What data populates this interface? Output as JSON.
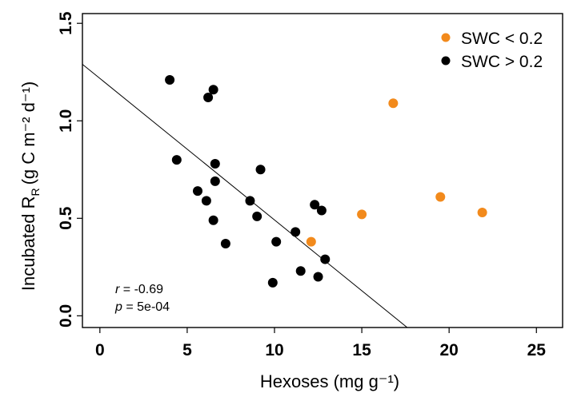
{
  "chart_data": {
    "type": "scatter",
    "xlabel": "Hexoses (mg g⁻¹)",
    "ylabel": "Incubated R",
    "ylabel_sub": "R",
    "ylabel_units": "(g C m⁻² d⁻¹)",
    "xlim": [
      -1,
      26.5
    ],
    "ylim": [
      -0.06,
      1.55
    ],
    "x_ticks": [
      0,
      5,
      10,
      15,
      20,
      25
    ],
    "y_ticks": [
      0.0,
      0.5,
      1.0,
      1.5
    ],
    "x_tick_labels": [
      "0",
      "5",
      "10",
      "15",
      "20",
      "25"
    ],
    "y_tick_labels": [
      "0.0",
      "0.5",
      "1.0",
      "1.5"
    ],
    "grid": false,
    "legend_position": "top-right",
    "series": [
      {
        "name": "SWC < 0.2",
        "color": "#f28a1c",
        "x": [
          12.1,
          15.0,
          16.8,
          19.5,
          21.9
        ],
        "y": [
          0.38,
          0.52,
          1.09,
          0.61,
          0.53
        ]
      },
      {
        "name": "SWC > 0.2",
        "color": "#000000",
        "x": [
          4.0,
          4.4,
          5.6,
          6.1,
          6.2,
          6.5,
          6.5,
          6.6,
          6.6,
          7.2,
          8.6,
          9.0,
          9.2,
          9.9,
          10.1,
          11.2,
          11.5,
          12.3,
          12.5,
          12.7,
          12.9
        ],
        "y": [
          1.21,
          0.8,
          0.64,
          0.59,
          1.12,
          1.16,
          0.49,
          0.78,
          0.69,
          0.37,
          0.59,
          0.51,
          0.75,
          0.17,
          0.38,
          0.43,
          0.23,
          0.57,
          0.2,
          0.54,
          0.29
        ]
      }
    ],
    "fit_line": {
      "x": [
        -1,
        17.6
      ],
      "y": [
        1.29,
        -0.06
      ]
    },
    "annotations": {
      "r_label": "r",
      "r_value": " = -0.69",
      "p_label": "p",
      "p_value": " = 5e-04"
    }
  }
}
